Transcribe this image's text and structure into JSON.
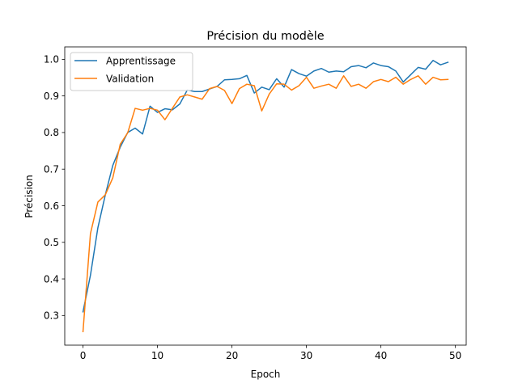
{
  "chart_data": {
    "type": "line",
    "title": "Précision du modèle",
    "xlabel": "Epoch",
    "ylabel": "Précision",
    "xlim": [
      -2.45,
      51.45
    ],
    "ylim": [
      0.219,
      1.034
    ],
    "xticks": [
      0,
      10,
      20,
      30,
      40,
      50
    ],
    "yticks": [
      0.3,
      0.4,
      0.5,
      0.6,
      0.7,
      0.8,
      0.9,
      1.0
    ],
    "ytick_labels": [
      "0.3",
      "0.4",
      "0.5",
      "0.6",
      "0.7",
      "0.8",
      "0.9",
      "1.0"
    ],
    "grid": false,
    "legend_position": "upper-left",
    "x": [
      0,
      1,
      2,
      3,
      4,
      5,
      6,
      7,
      8,
      9,
      10,
      11,
      12,
      13,
      14,
      15,
      16,
      17,
      18,
      19,
      20,
      21,
      22,
      23,
      24,
      25,
      26,
      27,
      28,
      29,
      30,
      31,
      32,
      33,
      34,
      35,
      36,
      37,
      38,
      39,
      40,
      41,
      42,
      43,
      44,
      45,
      46,
      47,
      48,
      49
    ],
    "series": [
      {
        "name": "Apprentissage",
        "color": "#1f77b4",
        "values": [
          0.31,
          0.41,
          0.54,
          0.63,
          0.71,
          0.76,
          0.8,
          0.812,
          0.796,
          0.872,
          0.855,
          0.865,
          0.862,
          0.878,
          0.916,
          0.912,
          0.912,
          0.919,
          0.926,
          0.944,
          0.945,
          0.947,
          0.956,
          0.908,
          0.924,
          0.917,
          0.947,
          0.924,
          0.972,
          0.961,
          0.954,
          0.968,
          0.975,
          0.965,
          0.968,
          0.966,
          0.98,
          0.983,
          0.977,
          0.99,
          0.983,
          0.98,
          0.968,
          0.938,
          0.958,
          0.978,
          0.973,
          0.997,
          0.985,
          0.992
        ]
      },
      {
        "name": "Validation",
        "color": "#ff7f0e",
        "values": [
          0.256,
          0.524,
          0.61,
          0.63,
          0.676,
          0.768,
          0.799,
          0.866,
          0.861,
          0.866,
          0.861,
          0.835,
          0.866,
          0.897,
          0.903,
          0.897,
          0.891,
          0.92,
          0.926,
          0.915,
          0.879,
          0.92,
          0.932,
          0.928,
          0.859,
          0.905,
          0.933,
          0.932,
          0.916,
          0.928,
          0.951,
          0.921,
          0.927,
          0.932,
          0.921,
          0.955,
          0.926,
          0.932,
          0.921,
          0.939,
          0.945,
          0.939,
          0.951,
          0.932,
          0.945,
          0.955,
          0.932,
          0.951,
          0.944,
          0.945
        ]
      }
    ]
  }
}
